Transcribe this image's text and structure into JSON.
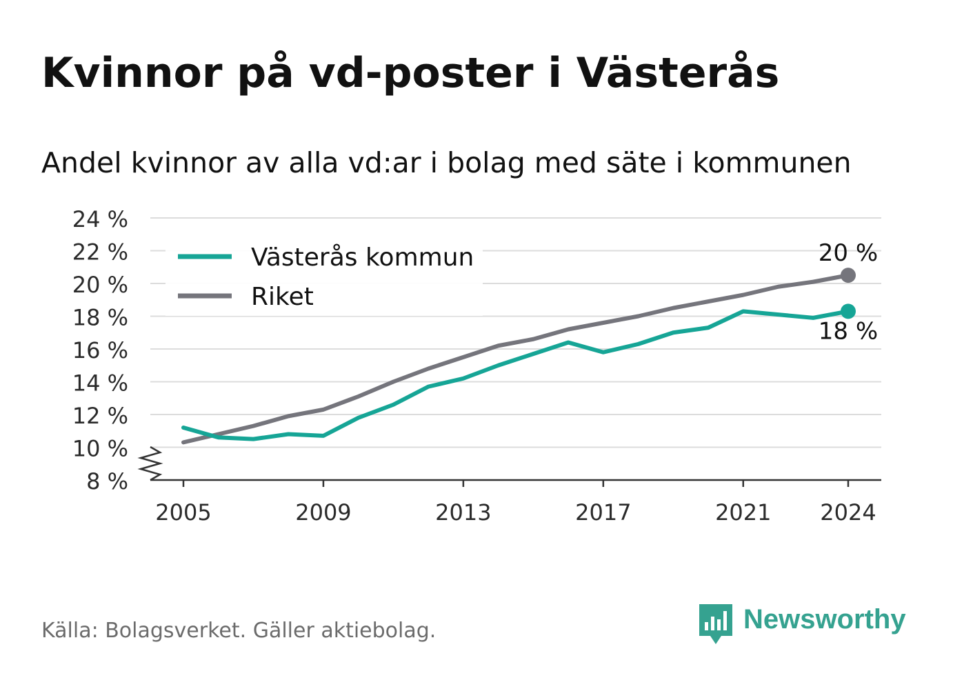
{
  "header": {
    "title": "Kvinnor på vd-poster i Västerås",
    "subtitle": "Andel kvinnor av alla vd:ar i bolag med säte i kommunen"
  },
  "footer": {
    "source": "Källa: Bolagsverket. Gäller aktiebolag.",
    "brand": "Newsworthy",
    "brand_icon": "bar-chart-speech-bubble-icon",
    "brand_color": "#35a290"
  },
  "chart_data": {
    "type": "line",
    "x": [
      2005,
      2006,
      2007,
      2008,
      2009,
      2010,
      2011,
      2012,
      2013,
      2014,
      2015,
      2016,
      2017,
      2018,
      2019,
      2020,
      2021,
      2022,
      2023,
      2024
    ],
    "x_ticks": [
      2005,
      2009,
      2013,
      2017,
      2021,
      2024
    ],
    "x_tick_labels": [
      "2005",
      "2009",
      "2013",
      "2017",
      "2021",
      "2024"
    ],
    "y_ticks": [
      8,
      10,
      12,
      14,
      16,
      18,
      20,
      22,
      24
    ],
    "y_tick_labels": [
      "8 %",
      "10 %",
      "12 %",
      "14 %",
      "16 %",
      "18 %",
      "20 %",
      "22 %",
      "24 %"
    ],
    "ylim": [
      8,
      24
    ],
    "y_axis_break": true,
    "grid": "horizontal",
    "legend_position": "top-left",
    "series": [
      {
        "name": "Västerås kommun",
        "color": "#16a596",
        "values": [
          11.2,
          10.6,
          10.5,
          10.8,
          10.7,
          11.8,
          12.6,
          13.7,
          14.2,
          15.0,
          15.7,
          16.4,
          15.8,
          16.3,
          17.0,
          17.3,
          18.3,
          18.1,
          17.9,
          18.3
        ],
        "end_label": "18 %"
      },
      {
        "name": "Riket",
        "color": "#75757c",
        "values": [
          10.3,
          10.8,
          11.3,
          11.9,
          12.3,
          13.1,
          14.0,
          14.8,
          15.5,
          16.2,
          16.6,
          17.2,
          17.6,
          18.0,
          18.5,
          18.9,
          19.3,
          19.8,
          20.1,
          20.5
        ],
        "end_label": "20 %"
      }
    ]
  }
}
